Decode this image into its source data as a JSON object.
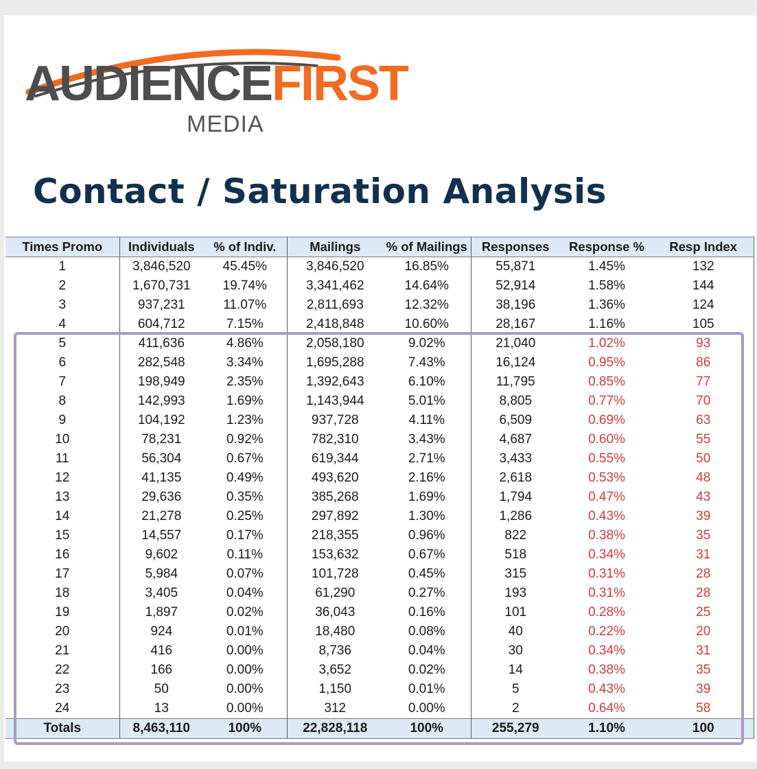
{
  "logo": {
    "audience": "AUDIENCE",
    "first": "FIRST",
    "media": "MEDIA"
  },
  "title": "Contact / Saturation Analysis",
  "colors": {
    "brand_orange": "#f26b22",
    "title_navy": "#12304f",
    "header_fill": "#dde9f5",
    "low_response_red": "#d23a3a",
    "highlight_purple": "#a99ac9"
  },
  "table": {
    "headers": [
      "Times Promo",
      "Individuals",
      "% of Indiv.",
      "Mailings",
      "% of Mailings",
      "Responses",
      "Response %",
      "Resp Index"
    ],
    "rows": [
      {
        "times": "1",
        "individuals": "3,846,520",
        "pct_indiv": "45.45%",
        "mailings": "3,846,520",
        "pct_mailings": "16.85%",
        "responses": "55,871",
        "response_pct": "1.45%",
        "resp_index": "132",
        "below_avg": false
      },
      {
        "times": "2",
        "individuals": "1,670,731",
        "pct_indiv": "19.74%",
        "mailings": "3,341,462",
        "pct_mailings": "14.64%",
        "responses": "52,914",
        "response_pct": "1.58%",
        "resp_index": "144",
        "below_avg": false
      },
      {
        "times": "3",
        "individuals": "937,231",
        "pct_indiv": "11.07%",
        "mailings": "2,811,693",
        "pct_mailings": "12.32%",
        "responses": "38,196",
        "response_pct": "1.36%",
        "resp_index": "124",
        "below_avg": false
      },
      {
        "times": "4",
        "individuals": "604,712",
        "pct_indiv": "7.15%",
        "mailings": "2,418,848",
        "pct_mailings": "10.60%",
        "responses": "28,167",
        "response_pct": "1.16%",
        "resp_index": "105",
        "below_avg": false
      },
      {
        "times": "5",
        "individuals": "411,636",
        "pct_indiv": "4.86%",
        "mailings": "2,058,180",
        "pct_mailings": "9.02%",
        "responses": "21,040",
        "response_pct": "1.02%",
        "resp_index": "93",
        "below_avg": true
      },
      {
        "times": "6",
        "individuals": "282,548",
        "pct_indiv": "3.34%",
        "mailings": "1,695,288",
        "pct_mailings": "7.43%",
        "responses": "16,124",
        "response_pct": "0.95%",
        "resp_index": "86",
        "below_avg": true
      },
      {
        "times": "7",
        "individuals": "198,949",
        "pct_indiv": "2.35%",
        "mailings": "1,392,643",
        "pct_mailings": "6.10%",
        "responses": "11,795",
        "response_pct": "0.85%",
        "resp_index": "77",
        "below_avg": true
      },
      {
        "times": "8",
        "individuals": "142,993",
        "pct_indiv": "1.69%",
        "mailings": "1,143,944",
        "pct_mailings": "5.01%",
        "responses": "8,805",
        "response_pct": "0.77%",
        "resp_index": "70",
        "below_avg": true
      },
      {
        "times": "9",
        "individuals": "104,192",
        "pct_indiv": "1.23%",
        "mailings": "937,728",
        "pct_mailings": "4.11%",
        "responses": "6,509",
        "response_pct": "0.69%",
        "resp_index": "63",
        "below_avg": true
      },
      {
        "times": "10",
        "individuals": "78,231",
        "pct_indiv": "0.92%",
        "mailings": "782,310",
        "pct_mailings": "3.43%",
        "responses": "4,687",
        "response_pct": "0.60%",
        "resp_index": "55",
        "below_avg": true
      },
      {
        "times": "11",
        "individuals": "56,304",
        "pct_indiv": "0.67%",
        "mailings": "619,344",
        "pct_mailings": "2.71%",
        "responses": "3,433",
        "response_pct": "0.55%",
        "resp_index": "50",
        "below_avg": true
      },
      {
        "times": "12",
        "individuals": "41,135",
        "pct_indiv": "0.49%",
        "mailings": "493,620",
        "pct_mailings": "2.16%",
        "responses": "2,618",
        "response_pct": "0.53%",
        "resp_index": "48",
        "below_avg": true
      },
      {
        "times": "13",
        "individuals": "29,636",
        "pct_indiv": "0.35%",
        "mailings": "385,268",
        "pct_mailings": "1.69%",
        "responses": "1,794",
        "response_pct": "0.47%",
        "resp_index": "43",
        "below_avg": true
      },
      {
        "times": "14",
        "individuals": "21,278",
        "pct_indiv": "0.25%",
        "mailings": "297,892",
        "pct_mailings": "1.30%",
        "responses": "1,286",
        "response_pct": "0.43%",
        "resp_index": "39",
        "below_avg": true
      },
      {
        "times": "15",
        "individuals": "14,557",
        "pct_indiv": "0.17%",
        "mailings": "218,355",
        "pct_mailings": "0.96%",
        "responses": "822",
        "response_pct": "0.38%",
        "resp_index": "35",
        "below_avg": true
      },
      {
        "times": "16",
        "individuals": "9,602",
        "pct_indiv": "0.11%",
        "mailings": "153,632",
        "pct_mailings": "0.67%",
        "responses": "518",
        "response_pct": "0.34%",
        "resp_index": "31",
        "below_avg": true
      },
      {
        "times": "17",
        "individuals": "5,984",
        "pct_indiv": "0.07%",
        "mailings": "101,728",
        "pct_mailings": "0.45%",
        "responses": "315",
        "response_pct": "0.31%",
        "resp_index": "28",
        "below_avg": true
      },
      {
        "times": "18",
        "individuals": "3,405",
        "pct_indiv": "0.04%",
        "mailings": "61,290",
        "pct_mailings": "0.27%",
        "responses": "193",
        "response_pct": "0.31%",
        "resp_index": "28",
        "below_avg": true
      },
      {
        "times": "19",
        "individuals": "1,897",
        "pct_indiv": "0.02%",
        "mailings": "36,043",
        "pct_mailings": "0.16%",
        "responses": "101",
        "response_pct": "0.28%",
        "resp_index": "25",
        "below_avg": true
      },
      {
        "times": "20",
        "individuals": "924",
        "pct_indiv": "0.01%",
        "mailings": "18,480",
        "pct_mailings": "0.08%",
        "responses": "40",
        "response_pct": "0.22%",
        "resp_index": "20",
        "below_avg": true
      },
      {
        "times": "21",
        "individuals": "416",
        "pct_indiv": "0.00%",
        "mailings": "8,736",
        "pct_mailings": "0.04%",
        "responses": "30",
        "response_pct": "0.34%",
        "resp_index": "31",
        "below_avg": true
      },
      {
        "times": "22",
        "individuals": "166",
        "pct_indiv": "0.00%",
        "mailings": "3,652",
        "pct_mailings": "0.02%",
        "responses": "14",
        "response_pct": "0.38%",
        "resp_index": "35",
        "below_avg": true
      },
      {
        "times": "23",
        "individuals": "50",
        "pct_indiv": "0.00%",
        "mailings": "1,150",
        "pct_mailings": "0.01%",
        "responses": "5",
        "response_pct": "0.43%",
        "resp_index": "39",
        "below_avg": true
      },
      {
        "times": "24",
        "individuals": "13",
        "pct_indiv": "0.00%",
        "mailings": "312",
        "pct_mailings": "0.00%",
        "responses": "2",
        "response_pct": "0.64%",
        "resp_index": "58",
        "below_avg": true
      }
    ],
    "totals": {
      "times": "Totals",
      "individuals": "8,463,110",
      "pct_indiv": "100%",
      "mailings": "22,828,118",
      "pct_mailings": "100%",
      "responses": "255,279",
      "response_pct": "1.10%",
      "resp_index": "100"
    }
  }
}
